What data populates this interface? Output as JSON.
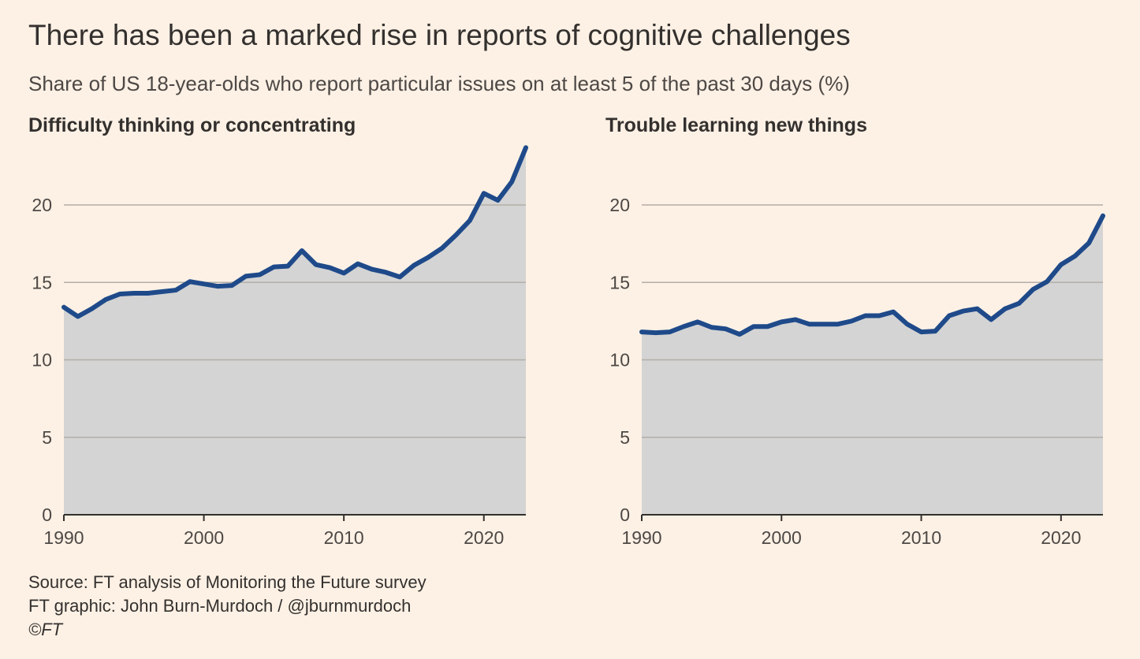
{
  "title": "There has been a marked rise in reports of cognitive challenges",
  "subtitle": "Share of US 18-year-olds who report particular issues on at least 5 of the past 30 days (%)",
  "footer": {
    "source": "Source: FT analysis of Monitoring the Future survey",
    "graphic": "FT graphic: John Burn-Murdoch / @jburnmurdoch",
    "copyright": "©FT"
  },
  "colors": {
    "background": "#fdf1e5",
    "line": "#1f4a8a",
    "area": "#d4d4d4",
    "grid": "#b3aea8",
    "axis": "#33302e"
  },
  "chart_data": [
    {
      "type": "area",
      "title": "Difficulty thinking or concentrating",
      "xlabel": "",
      "ylabel": "",
      "xlim": [
        1990,
        2023
      ],
      "ylim": [
        0,
        24
      ],
      "x_ticks": [
        1990,
        2000,
        2010,
        2020
      ],
      "y_ticks": [
        0,
        5,
        10,
        15,
        20
      ],
      "x": [
        1990,
        1991,
        1992,
        1993,
        1994,
        1995,
        1996,
        1997,
        1998,
        1999,
        2000,
        2001,
        2002,
        2003,
        2004,
        2005,
        2006,
        2007,
        2008,
        2009,
        2010,
        2011,
        2012,
        2013,
        2014,
        2015,
        2016,
        2017,
        2018,
        2019,
        2020,
        2021,
        2022,
        2023
      ],
      "values": [
        13.4,
        12.8,
        13.3,
        13.9,
        14.25,
        14.3,
        14.3,
        14.4,
        14.5,
        15.05,
        14.9,
        14.75,
        14.8,
        15.4,
        15.5,
        16.0,
        16.05,
        17.05,
        16.15,
        15.95,
        15.6,
        16.2,
        15.85,
        15.65,
        15.35,
        16.1,
        16.6,
        17.2,
        18.05,
        19.0,
        20.75,
        20.3,
        21.5,
        23.7
      ]
    },
    {
      "type": "area",
      "title": "Trouble learning new things",
      "xlabel": "",
      "ylabel": "",
      "xlim": [
        1990,
        2023
      ],
      "ylim": [
        0,
        24
      ],
      "x_ticks": [
        1990,
        2000,
        2010,
        2020
      ],
      "y_ticks": [
        0,
        5,
        10,
        15,
        20
      ],
      "x": [
        1990,
        1991,
        1992,
        1993,
        1994,
        1995,
        1996,
        1997,
        1998,
        1999,
        2000,
        2001,
        2002,
        2003,
        2004,
        2005,
        2006,
        2007,
        2008,
        2009,
        2010,
        2011,
        2012,
        2013,
        2014,
        2015,
        2016,
        2017,
        2018,
        2019,
        2020,
        2021,
        2022,
        2023
      ],
      "values": [
        11.8,
        11.75,
        11.8,
        12.15,
        12.45,
        12.1,
        12.0,
        11.65,
        12.15,
        12.15,
        12.45,
        12.6,
        12.3,
        12.3,
        12.3,
        12.5,
        12.85,
        12.85,
        13.1,
        12.3,
        11.8,
        11.85,
        12.85,
        13.15,
        13.3,
        12.6,
        13.3,
        13.65,
        14.55,
        15.05,
        16.15,
        16.7,
        17.55,
        19.3
      ]
    }
  ]
}
